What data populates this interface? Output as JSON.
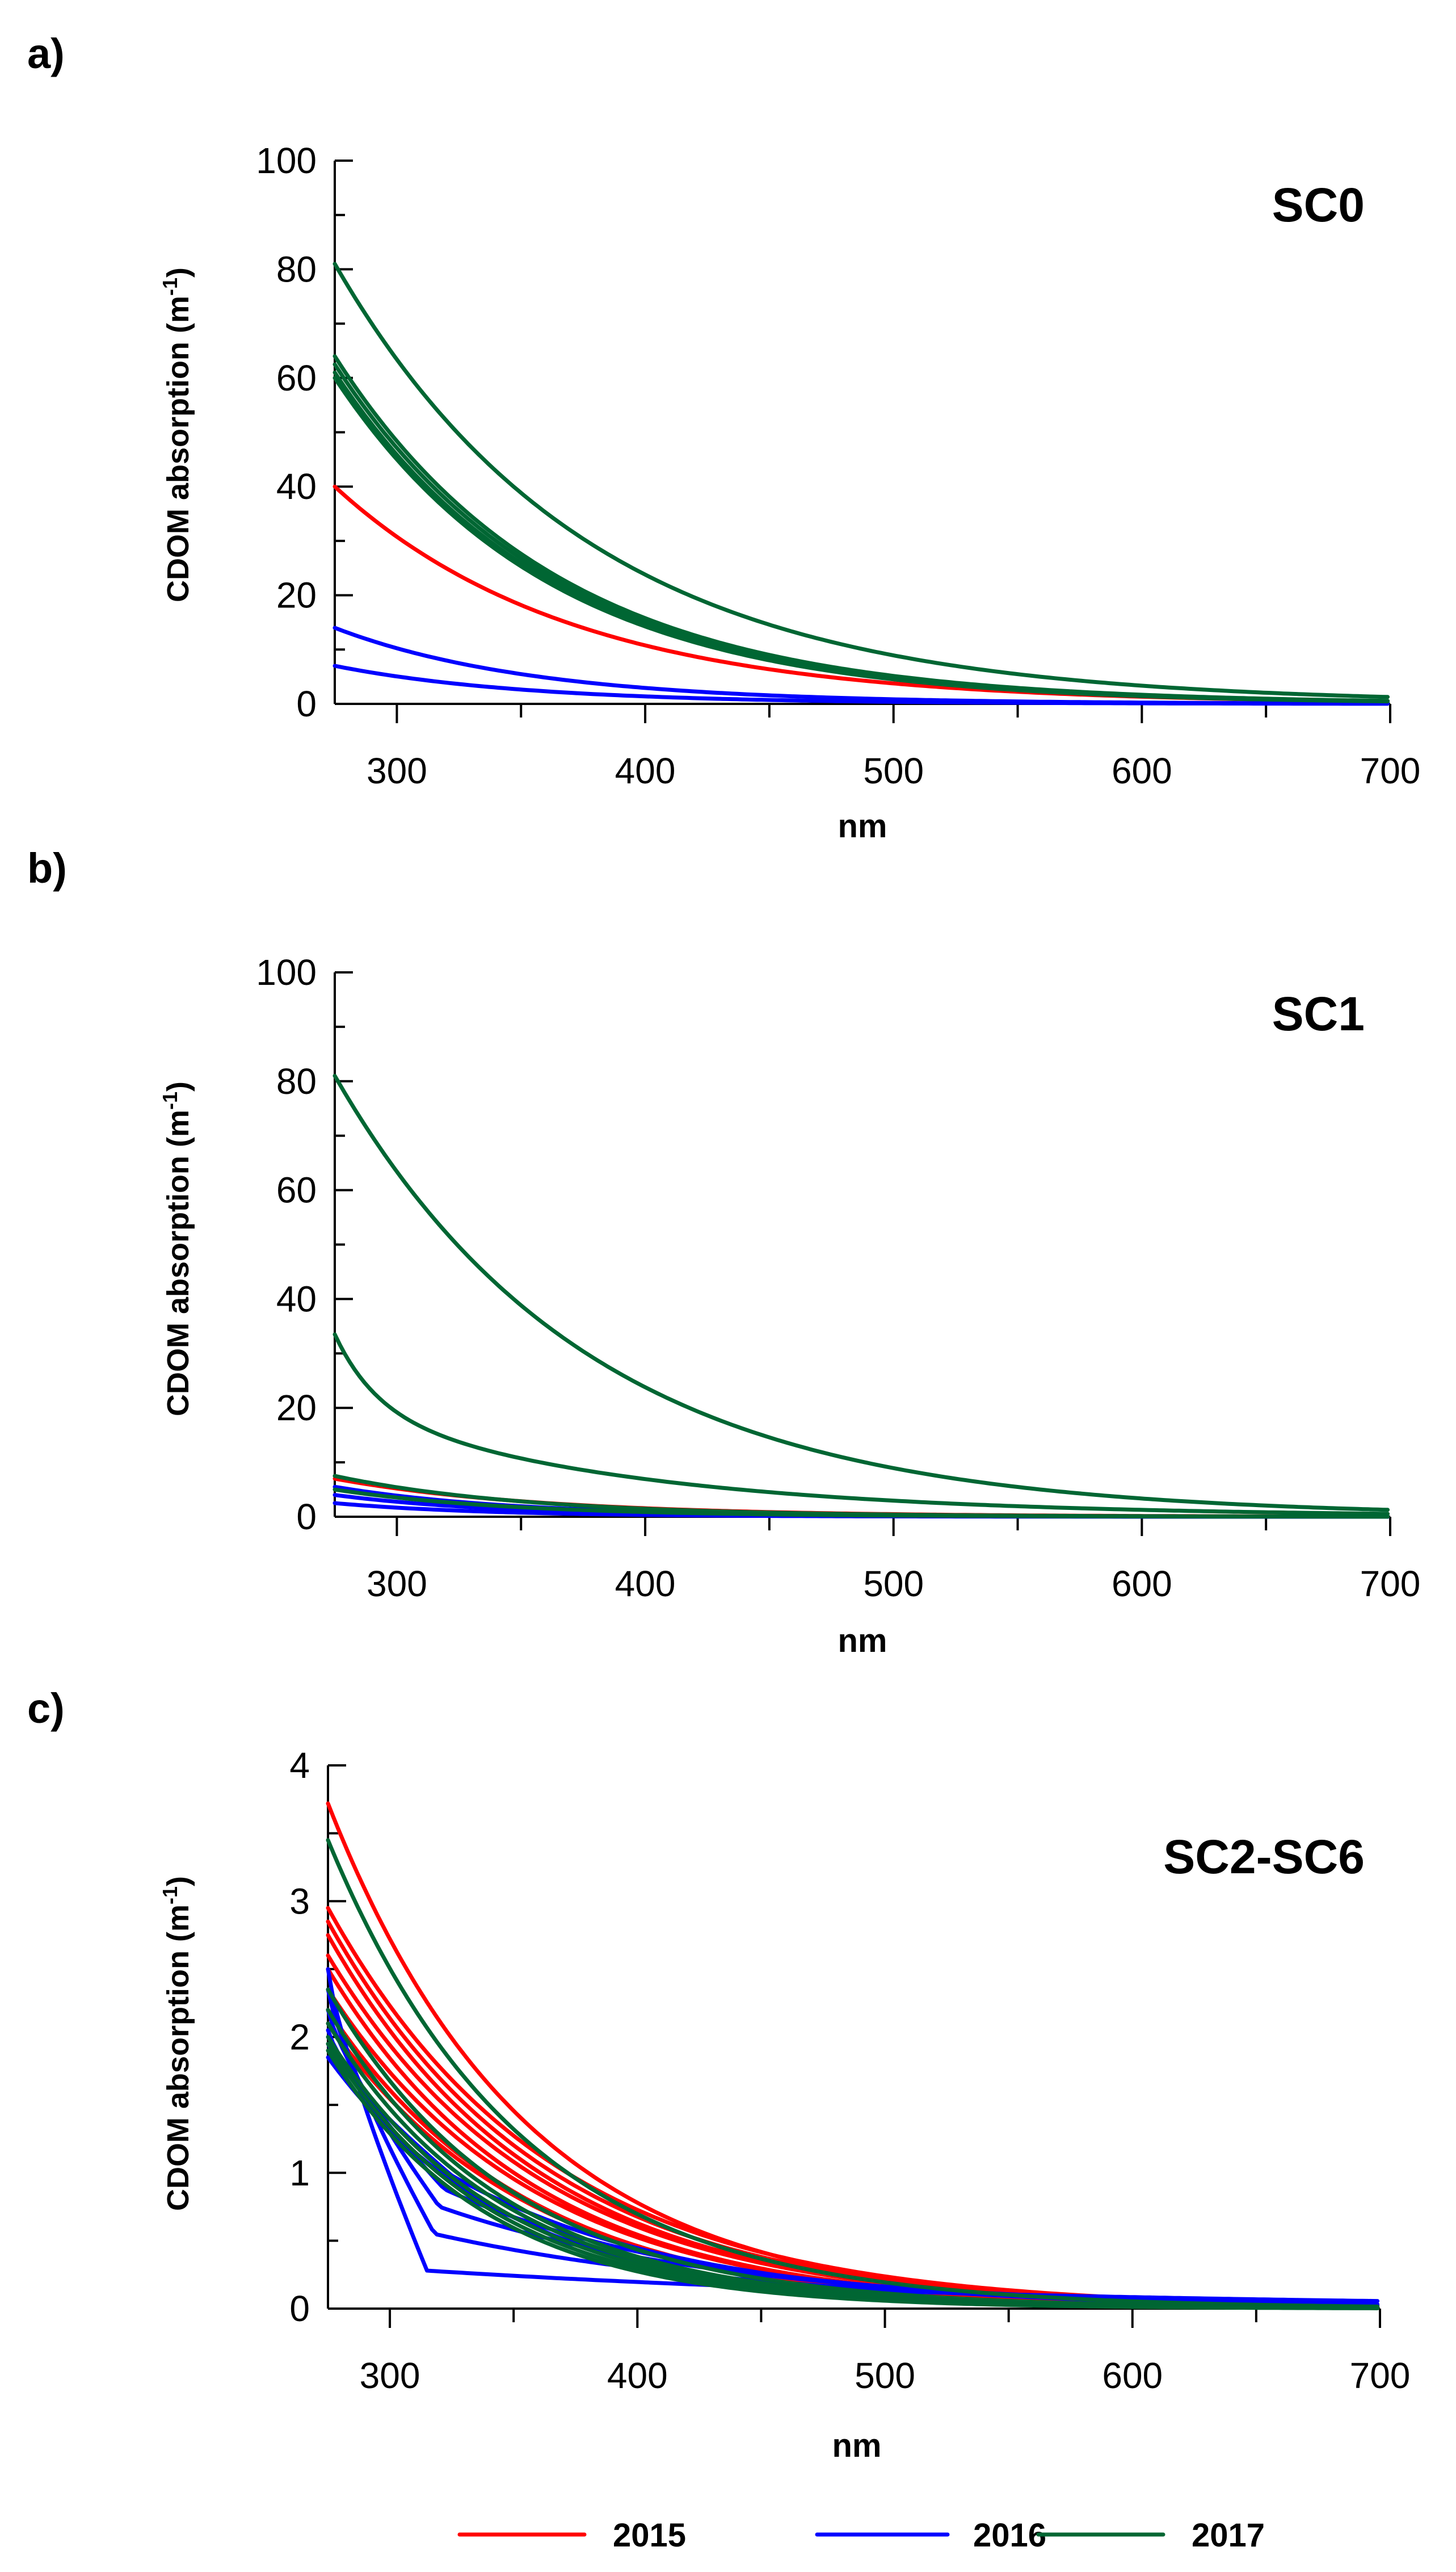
{
  "colors": {
    "2015": "#ff0000",
    "2016": "#0000ff",
    "2017": "#006633"
  },
  "legend": [
    {
      "label": "2015",
      "color": "#ff0000"
    },
    {
      "label": "2016",
      "color": "#0000ff"
    },
    {
      "label": "2017",
      "color": "#006633"
    }
  ],
  "chart_data": [
    {
      "panel": "a)",
      "type": "line",
      "title": "SC0",
      "xlabel": "nm",
      "ylabel": "CDOM absorption (m-1)",
      "xlim": [
        275,
        700
      ],
      "ylim": [
        0,
        100
      ],
      "xticks": [
        300,
        400,
        500,
        600,
        700
      ],
      "yticks": [
        0,
        20,
        40,
        60,
        80,
        100
      ],
      "series": [
        {
          "name": "2015",
          "year": "2015",
          "a0": 40,
          "slope": 0.0105
        },
        {
          "name": "2016",
          "year": "2016",
          "a0": 14,
          "slope": 0.0125
        },
        {
          "name": "2016",
          "year": "2016",
          "a0": 7,
          "slope": 0.013
        },
        {
          "name": "2017",
          "year": "2017",
          "a0": 81,
          "slope": 0.0098
        },
        {
          "name": "2017",
          "year": "2017",
          "a0": 64,
          "slope": 0.0112
        },
        {
          "name": "2017",
          "year": "2017",
          "a0": 62.5,
          "slope": 0.0113
        },
        {
          "name": "2017",
          "year": "2017",
          "a0": 61,
          "slope": 0.0114
        },
        {
          "name": "2017",
          "year": "2017",
          "a0": 60,
          "slope": 0.0115
        }
      ]
    },
    {
      "panel": "b)",
      "type": "line",
      "title": "SC1",
      "xlabel": "nm",
      "ylabel": "CDOM absorption (m-1)",
      "xlim": [
        275,
        700
      ],
      "ylim": [
        0,
        100
      ],
      "xticks": [
        300,
        400,
        500,
        600,
        700
      ],
      "yticks": [
        0,
        20,
        40,
        60,
        80,
        100
      ],
      "series": [
        {
          "name": "2015",
          "year": "2015",
          "a0": 7,
          "slope": 0.012
        },
        {
          "name": "2016",
          "year": "2016",
          "a0": 5.5,
          "slope": 0.014
        },
        {
          "name": "2016",
          "year": "2016",
          "a0": 4,
          "slope": 0.015
        },
        {
          "name": "2016",
          "year": "2016",
          "a0": 2.5,
          "slope": 0.016
        },
        {
          "name": "2017",
          "year": "2017",
          "a0": 81,
          "slope": 0.0098
        },
        {
          "name": "2017",
          "year": "2017",
          "a0": 33.5,
          "slope": 0.02,
          "a1": 20,
          "slope2": 0.0085
        },
        {
          "name": "2017",
          "year": "2017",
          "a0": 7.5,
          "slope": 0.013
        },
        {
          "name": "2017",
          "year": "2017",
          "a0": 5,
          "slope": 0.014
        }
      ]
    },
    {
      "panel": "c)",
      "type": "line",
      "title": "SC2-SC6",
      "xlabel": "nm",
      "ylabel": "CDOM absorption (m-1)",
      "xlim": [
        275,
        700
      ],
      "ylim": [
        0,
        4
      ],
      "xticks": [
        300,
        400,
        500,
        600,
        700
      ],
      "yticks": [
        0,
        1,
        2,
        3,
        4
      ],
      "series": [
        {
          "name": "2015",
          "year": "2015",
          "a0": 3.72,
          "slope": 0.0125
        },
        {
          "name": "2015",
          "year": "2015",
          "a0": 2.95,
          "slope": 0.0112
        },
        {
          "name": "2015",
          "year": "2015",
          "a0": 2.85,
          "slope": 0.0115
        },
        {
          "name": "2015",
          "year": "2015",
          "a0": 2.75,
          "slope": 0.0118
        },
        {
          "name": "2015",
          "year": "2015",
          "a0": 2.6,
          "slope": 0.0117
        },
        {
          "name": "2015",
          "year": "2015",
          "a0": 2.5,
          "slope": 0.0122
        },
        {
          "name": "2015",
          "year": "2015",
          "a0": 2.35,
          "slope": 0.012
        },
        {
          "name": "2015",
          "year": "2015",
          "a0": 2.2,
          "slope": 0.0125
        },
        {
          "name": "2015",
          "year": "2015",
          "a0": 2.1,
          "slope": 0.0123
        },
        {
          "name": "2016",
          "year": "2016",
          "a0": 2.5,
          "slope": 0.015,
          "knee": 315,
          "a1": 0.28,
          "slope2": 0.0042
        },
        {
          "name": "2016",
          "year": "2016",
          "a0": 2.35,
          "slope": 0.014,
          "knee": 318,
          "a1": 0.55,
          "slope2": 0.0075
        },
        {
          "name": "2016",
          "year": "2016",
          "a0": 2.2,
          "slope": 0.014,
          "knee": 320,
          "a1": 0.75,
          "slope2": 0.0085
        },
        {
          "name": "2016",
          "year": "2016",
          "a0": 2.05,
          "slope": 0.0135,
          "knee": 322,
          "a1": 0.88,
          "slope2": 0.0095
        },
        {
          "name": "2016",
          "year": "2016",
          "a0": 1.95,
          "slope": 0.0135,
          "knee": 325,
          "a1": 0.98,
          "slope2": 0.0105
        },
        {
          "name": "2016",
          "year": "2016",
          "a0": 1.85,
          "slope": 0.0135
        },
        {
          "name": "2017",
          "year": "2017",
          "a0": 3.45,
          "slope": 0.0128
        },
        {
          "name": "2017",
          "year": "2017",
          "a0": 2.35,
          "slope": 0.0135
        },
        {
          "name": "2017",
          "year": "2017",
          "a0": 2.2,
          "slope": 0.014
        },
        {
          "name": "2017",
          "year": "2017",
          "a0": 2.1,
          "slope": 0.0142
        },
        {
          "name": "2017",
          "year": "2017",
          "a0": 2.0,
          "slope": 0.0145
        },
        {
          "name": "2017",
          "year": "2017",
          "a0": 1.95,
          "slope": 0.015
        },
        {
          "name": "2017",
          "year": "2017",
          "a0": 1.9,
          "slope": 0.0155
        }
      ]
    }
  ]
}
